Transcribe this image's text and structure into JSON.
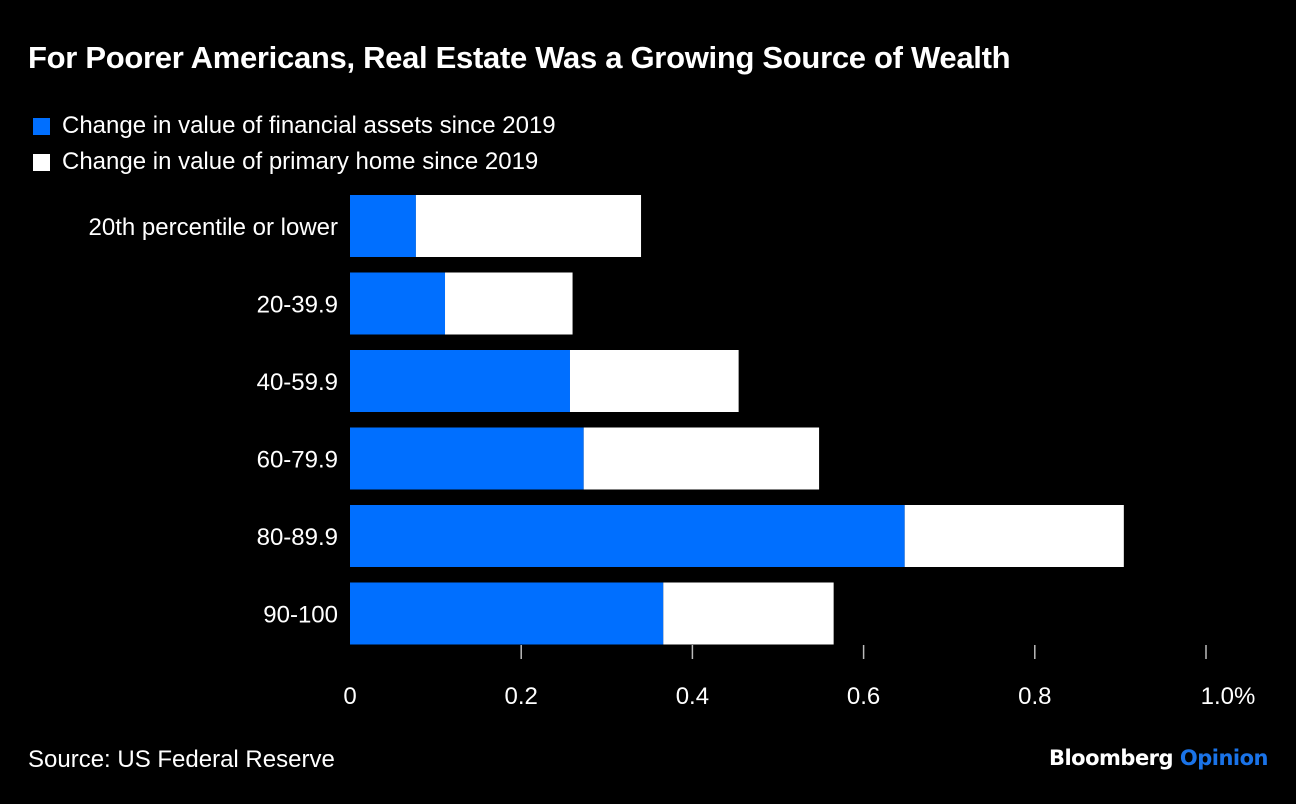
{
  "chart_data": {
    "type": "bar",
    "orientation": "horizontal",
    "stacked": true,
    "title": "For Poorer Americans, Real Estate Was a Growing Source of Wealth",
    "categories": [
      "20th percentile or lower",
      "20-39.9",
      "40-59.9",
      "60-79.9",
      "80-89.9",
      "90-100"
    ],
    "series": [
      {
        "name": "Change in value of financial assets since 2019",
        "color": "#006fff",
        "values": [
          0.077,
          0.111,
          0.257,
          0.273,
          0.648,
          0.366
        ]
      },
      {
        "name": "Change in value of primary home since 2019",
        "color": "#ffffff",
        "values": [
          0.263,
          0.149,
          0.197,
          0.275,
          0.256,
          0.199
        ]
      }
    ],
    "xlabel": "",
    "ylabel": "",
    "xlim": [
      0,
      1.0
    ],
    "xticks": [
      0,
      0.2,
      0.4,
      0.6,
      0.8,
      1.0
    ],
    "xtick_labels": [
      "0",
      "0.2",
      "0.4",
      "0.6",
      "0.8",
      "1.0%"
    ],
    "grid": false,
    "legend_position": "top-left"
  },
  "footer": {
    "source": "Source: US Federal Reserve",
    "brand_primary": "Bloomberg",
    "brand_secondary": "Opinion"
  }
}
